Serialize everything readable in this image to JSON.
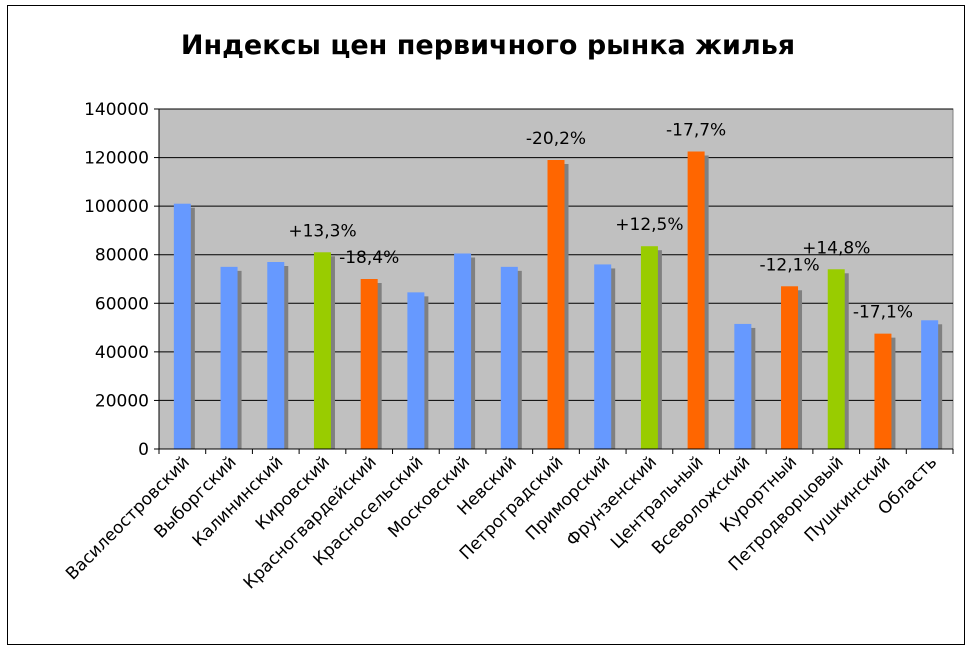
{
  "chart_data": {
    "type": "bar",
    "title": "Индексы цен первичного рынка жилья",
    "xlabel": "",
    "ylabel": "",
    "ylim": [
      0,
      140000
    ],
    "yticks": [
      0,
      20000,
      40000,
      60000,
      80000,
      100000,
      120000,
      140000
    ],
    "grid": true,
    "legend": "none",
    "colors": {
      "default": "#6699FF",
      "increase": "#99CC00",
      "decrease": "#FF6600",
      "plot_background": "#C0C0C0",
      "shadow": "#808080"
    },
    "categories": [
      "Василеостровский",
      "Выборгский",
      "Калининский",
      "Кировский",
      "Красногвардейский",
      "Красносельский",
      "Московский",
      "Невский",
      "Петроградский",
      "Приморский",
      "Фрунзенский",
      "Центральный",
      "Всеволожский",
      "Курортный",
      "Петродворцовый",
      "Пушкинский",
      "Область"
    ],
    "values": [
      101000,
      75000,
      77000,
      81000,
      70000,
      64500,
      80500,
      75000,
      119000,
      76000,
      83500,
      122500,
      51500,
      67000,
      74000,
      47500,
      53000
    ],
    "bar_kind": [
      "default",
      "default",
      "default",
      "increase",
      "decrease",
      "default",
      "default",
      "default",
      "decrease",
      "default",
      "increase",
      "decrease",
      "default",
      "decrease",
      "increase",
      "decrease",
      "default"
    ],
    "data_labels": [
      "",
      "",
      "",
      "+13,3%",
      "-18,4%",
      "",
      "",
      "",
      "-20,2%",
      "",
      "+12,5%",
      "-17,7%",
      "",
      "-12,1%",
      "+14,8%",
      "-17,1%",
      ""
    ]
  }
}
